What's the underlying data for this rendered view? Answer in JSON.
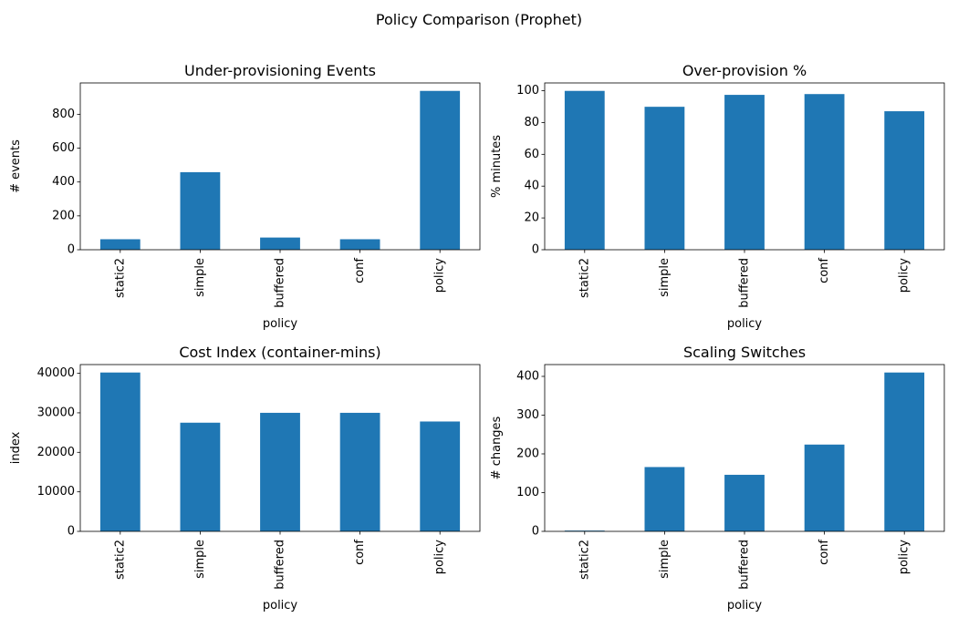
{
  "figure": {
    "title": "Policy Comparison (Prophet)"
  },
  "colors": {
    "bar": "#1f77b4"
  },
  "chart_data": [
    {
      "type": "bar",
      "title": "Under-provisioning Events",
      "xlabel": "policy",
      "ylabel": "# events",
      "categories": [
        "static2",
        "simple",
        "buffered",
        "conf",
        "policy"
      ],
      "values": [
        62,
        458,
        72,
        62,
        938
      ],
      "ylim": [
        0,
        985
      ],
      "yticks": [
        0,
        200,
        400,
        600,
        800
      ],
      "ytick_labels": [
        "0",
        "200",
        "400",
        "600",
        "800"
      ],
      "grid": false,
      "legend": "none"
    },
    {
      "type": "bar",
      "title": "Over-provision %",
      "xlabel": "policy",
      "ylabel": "% minutes",
      "categories": [
        "static2",
        "simple",
        "buffered",
        "conf",
        "policy"
      ],
      "values": [
        99.9,
        89.9,
        97.4,
        97.9,
        87.1
      ],
      "ylim": [
        0,
        104.9
      ],
      "yticks": [
        0,
        20,
        40,
        60,
        80,
        100
      ],
      "ytick_labels": [
        "0",
        "20",
        "40",
        "60",
        "80",
        "100"
      ],
      "grid": false,
      "legend": "none"
    },
    {
      "type": "bar",
      "title": "Cost Index (container-mins)",
      "xlabel": "policy",
      "ylabel": "index",
      "categories": [
        "static2",
        "simple",
        "buffered",
        "conf",
        "policy"
      ],
      "values": [
        40200,
        27500,
        30000,
        30000,
        27800
      ],
      "ylim": [
        0,
        42210
      ],
      "yticks": [
        0,
        10000,
        20000,
        30000,
        40000
      ],
      "ytick_labels": [
        "0",
        "10000",
        "20000",
        "30000",
        "40000"
      ],
      "grid": false,
      "legend": "none"
    },
    {
      "type": "bar",
      "title": "Scaling Switches",
      "xlabel": "policy",
      "ylabel": "# changes",
      "categories": [
        "static2",
        "simple",
        "buffered",
        "conf",
        "policy"
      ],
      "values": [
        2,
        166,
        146,
        224,
        410
      ],
      "ylim": [
        0,
        430.5
      ],
      "yticks": [
        0,
        100,
        200,
        300,
        400
      ],
      "ytick_labels": [
        "0",
        "100",
        "200",
        "300",
        "400"
      ],
      "grid": false,
      "legend": "none"
    }
  ]
}
